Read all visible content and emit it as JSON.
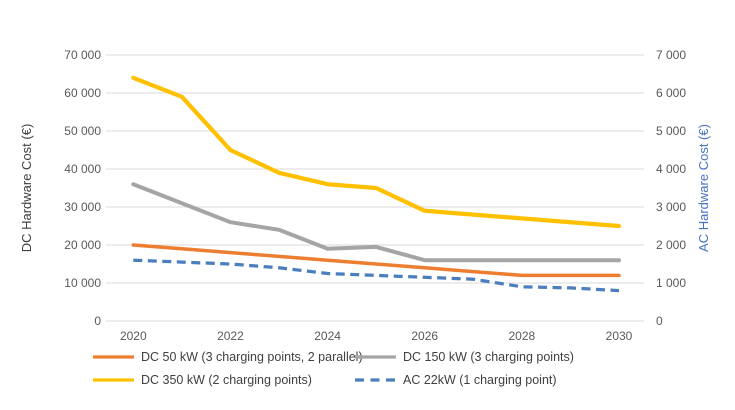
{
  "chart_data": {
    "type": "line",
    "x": [
      2020,
      2021,
      2022,
      2023,
      2024,
      2025,
      2026,
      2027,
      2028,
      2029,
      2030
    ],
    "x_tick_labels": [
      "2020",
      "2022",
      "2024",
      "2026",
      "2028",
      "2030"
    ],
    "series": [
      {
        "key": "dc-50kw",
        "name": "DC 50 kW (3 charging points, 2 parallel)",
        "axis": "left",
        "color": "#ED7D31",
        "style": "solid",
        "values": [
          20000,
          19000,
          18000,
          17000,
          16000,
          15000,
          14000,
          13000,
          12000,
          12000,
          12000
        ]
      },
      {
        "key": "dc-150kw",
        "name": "DC 150 kW (3 charging points)",
        "axis": "left",
        "color": "#A5A5A5",
        "style": "solid",
        "values": [
          36000,
          31000,
          26000,
          24000,
          19000,
          19500,
          16000,
          16000,
          16000,
          16000,
          16000
        ]
      },
      {
        "key": "dc-350kw",
        "name": "DC 350 kW (2 charging points)",
        "axis": "left",
        "color": "#FFC000",
        "style": "solid",
        "values": [
          64000,
          59000,
          45000,
          39000,
          36000,
          35000,
          29000,
          28000,
          27000,
          26000,
          25000
        ]
      },
      {
        "key": "ac-22kw",
        "name": "AC 22kW (1 charging point)",
        "axis": "right",
        "color": "#4A7EBD",
        "style": "dashed",
        "values": [
          1600,
          1550,
          1500,
          1400,
          1250,
          1200,
          1150,
          1100,
          900,
          870,
          800
        ]
      }
    ],
    "left_axis": {
      "title": "DC Hardware Cost (€)",
      "range": [
        0,
        70000
      ],
      "tick_labels": [
        "70 000",
        "60 000",
        "50 000",
        "40 000",
        "30 000",
        "20 000",
        "10 000",
        "0"
      ]
    },
    "right_axis": {
      "title": "AC Hardware Cost (€)",
      "range": [
        0,
        7000
      ],
      "tick_labels": [
        "7 000",
        "6 000",
        "5 000",
        "4 000",
        "3 000",
        "2 000",
        "1 000",
        "0"
      ]
    },
    "grid": true,
    "legend_position": "bottom"
  }
}
